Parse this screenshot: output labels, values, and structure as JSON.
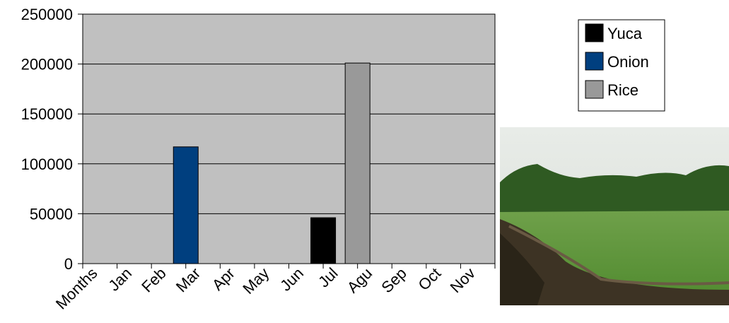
{
  "chart_data": {
    "type": "bar",
    "categories": [
      "Months",
      "Jan",
      "Feb",
      "Mar",
      "Apr",
      "May",
      "Jun",
      "Jul",
      "Agu",
      "Sep",
      "Oct",
      "Nov"
    ],
    "series": [
      {
        "name": "Yuca",
        "color": "#000000",
        "values": [
          null,
          null,
          null,
          null,
          null,
          null,
          null,
          46000,
          null,
          null,
          null,
          null
        ]
      },
      {
        "name": "Onion",
        "color": "#003f7f",
        "values": [
          null,
          null,
          null,
          117000,
          null,
          null,
          null,
          null,
          null,
          null,
          null,
          null
        ]
      },
      {
        "name": "Rice",
        "color": "#999999",
        "values": [
          null,
          null,
          null,
          null,
          null,
          null,
          null,
          null,
          201000,
          null,
          null,
          null
        ]
      }
    ],
    "ylim": [
      0,
      250000
    ],
    "yticks": [
      0,
      50000,
      100000,
      150000,
      200000,
      250000
    ],
    "grid": true,
    "legend": "top-right"
  }
}
